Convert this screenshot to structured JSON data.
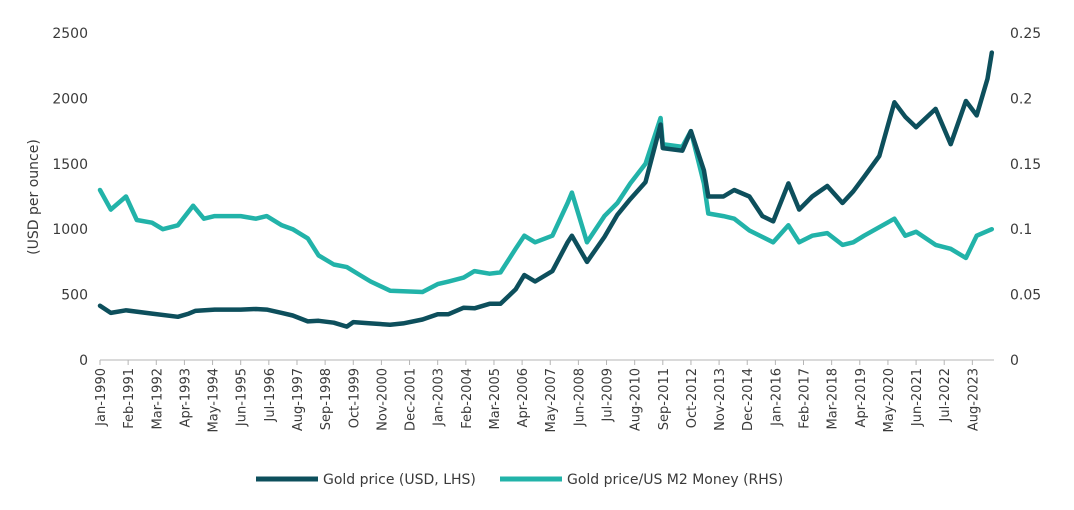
{
  "chart_data": {
    "type": "line",
    "title": "",
    "xlabel": "",
    "ylabel": "(USD per ounce)",
    "ylabel_right": "",
    "ylim": [
      0,
      2500
    ],
    "ylim_right": [
      0,
      0.25
    ],
    "y_ticks": [
      "0",
      "500",
      "1000",
      "1500",
      "2000",
      "2500"
    ],
    "y_ticks_right": [
      "0",
      "0.05",
      "0.1",
      "0.15",
      "0.2",
      "0.25"
    ],
    "x_ticks": [
      "Jan-1990",
      "Feb-1991",
      "Mar-1992",
      "Apr-1993",
      "May-1994",
      "Jun-1995",
      "Jul-1996",
      "Aug-1997",
      "Sep-1998",
      "Oct-1999",
      "Nov-2000",
      "Dec-2001",
      "Jan-2003",
      "Feb-2004",
      "Mar-2005",
      "Apr-2006",
      "May-2007",
      "Jun-2008",
      "Jul-2009",
      "Aug-2010",
      "Sep-2011",
      "Oct-2012",
      "Nov-2013",
      "Dec-2014",
      "Jan-2016",
      "Feb-2017",
      "Mar-2018",
      "Apr-2019",
      "May-2020",
      "Jun-2021",
      "Jul-2022",
      "Aug-2023"
    ],
    "grid": false,
    "legend_position": "bottom",
    "series": [
      {
        "name": "Gold price (USD, LHS)",
        "axis": "left",
        "color": "#0d4f5c",
        "x": [
          "1990-01",
          "1990-06",
          "1991-01",
          "1992-01",
          "1993-01",
          "1993-06",
          "1993-09",
          "1994-06",
          "1995-06",
          "1996-01",
          "1996-06",
          "1997-01",
          "1997-06",
          "1998-01",
          "1998-06",
          "1999-01",
          "1999-07",
          "1999-10",
          "2000-06",
          "2001-03",
          "2001-09",
          "2002-06",
          "2003-01",
          "2003-06",
          "2004-01",
          "2004-06",
          "2005-01",
          "2005-06",
          "2006-01",
          "2006-05",
          "2006-10",
          "2007-06",
          "2008-01",
          "2008-03",
          "2008-10",
          "2009-06",
          "2009-12",
          "2010-06",
          "2011-01",
          "2011-08",
          "2011-09",
          "2012-06",
          "2012-10",
          "2013-04",
          "2013-06",
          "2014-01",
          "2014-06",
          "2015-01",
          "2015-07",
          "2015-12",
          "2016-07",
          "2016-12",
          "2017-06",
          "2018-01",
          "2018-08",
          "2019-01",
          "2019-06",
          "2020-01",
          "2020-08",
          "2021-01",
          "2021-06",
          "2022-03",
          "2022-10",
          "2023-05",
          "2023-10",
          "2024-03",
          "2024-05"
        ],
        "y": [
          415,
          360,
          380,
          355,
          330,
          355,
          375,
          385,
          385,
          390,
          385,
          360,
          340,
          295,
          300,
          285,
          255,
          290,
          280,
          270,
          280,
          310,
          350,
          350,
          400,
          395,
          430,
          430,
          540,
          650,
          600,
          680,
          900,
          950,
          750,
          940,
          1110,
          1230,
          1360,
          1800,
          1620,
          1600,
          1750,
          1450,
          1250,
          1250,
          1300,
          1250,
          1100,
          1060,
          1350,
          1150,
          1250,
          1330,
          1200,
          1290,
          1400,
          1560,
          1970,
          1860,
          1780,
          1920,
          1650,
          1980,
          1870,
          2150,
          2350
        ]
      },
      {
        "name": "Gold price/US M2 Money (RHS)",
        "axis": "right",
        "color": "#22b3a9",
        "x": [
          "1990-01",
          "1990-06",
          "1991-01",
          "1991-06",
          "1992-01",
          "1992-06",
          "1993-01",
          "1993-08",
          "1994-01",
          "1994-06",
          "1995-06",
          "1996-01",
          "1996-06",
          "1997-01",
          "1997-06",
          "1998-01",
          "1998-06",
          "1999-01",
          "1999-07",
          "2000-01",
          "2000-06",
          "2001-03",
          "2002-06",
          "2003-01",
          "2003-06",
          "2004-01",
          "2004-06",
          "2005-01",
          "2005-06",
          "2006-01",
          "2006-05",
          "2006-10",
          "2007-06",
          "2008-01",
          "2008-03",
          "2008-10",
          "2009-06",
          "2009-12",
          "2010-06",
          "2011-01",
          "2011-08",
          "2011-09",
          "2012-06",
          "2012-10",
          "2013-04",
          "2013-06",
          "2014-01",
          "2014-06",
          "2015-01",
          "2015-12",
          "2016-07",
          "2016-12",
          "2017-06",
          "2018-01",
          "2018-08",
          "2019-01",
          "2019-06",
          "2020-08",
          "2021-01",
          "2021-06",
          "2022-03",
          "2022-10",
          "2023-05",
          "2023-10",
          "2024-05"
        ],
        "y": [
          0.13,
          0.115,
          0.125,
          0.107,
          0.105,
          0.1,
          0.103,
          0.118,
          0.108,
          0.11,
          0.11,
          0.108,
          0.11,
          0.103,
          0.1,
          0.093,
          0.08,
          0.073,
          0.071,
          0.065,
          0.06,
          0.053,
          0.052,
          0.058,
          0.06,
          0.063,
          0.068,
          0.066,
          0.067,
          0.085,
          0.095,
          0.09,
          0.095,
          0.12,
          0.128,
          0.09,
          0.11,
          0.12,
          0.135,
          0.15,
          0.185,
          0.165,
          0.163,
          0.175,
          0.135,
          0.112,
          0.11,
          0.108,
          0.099,
          0.09,
          0.103,
          0.09,
          0.095,
          0.097,
          0.088,
          0.09,
          0.095,
          0.108,
          0.095,
          0.098,
          0.088,
          0.085,
          0.078,
          0.095,
          0.1
        ]
      }
    ]
  }
}
